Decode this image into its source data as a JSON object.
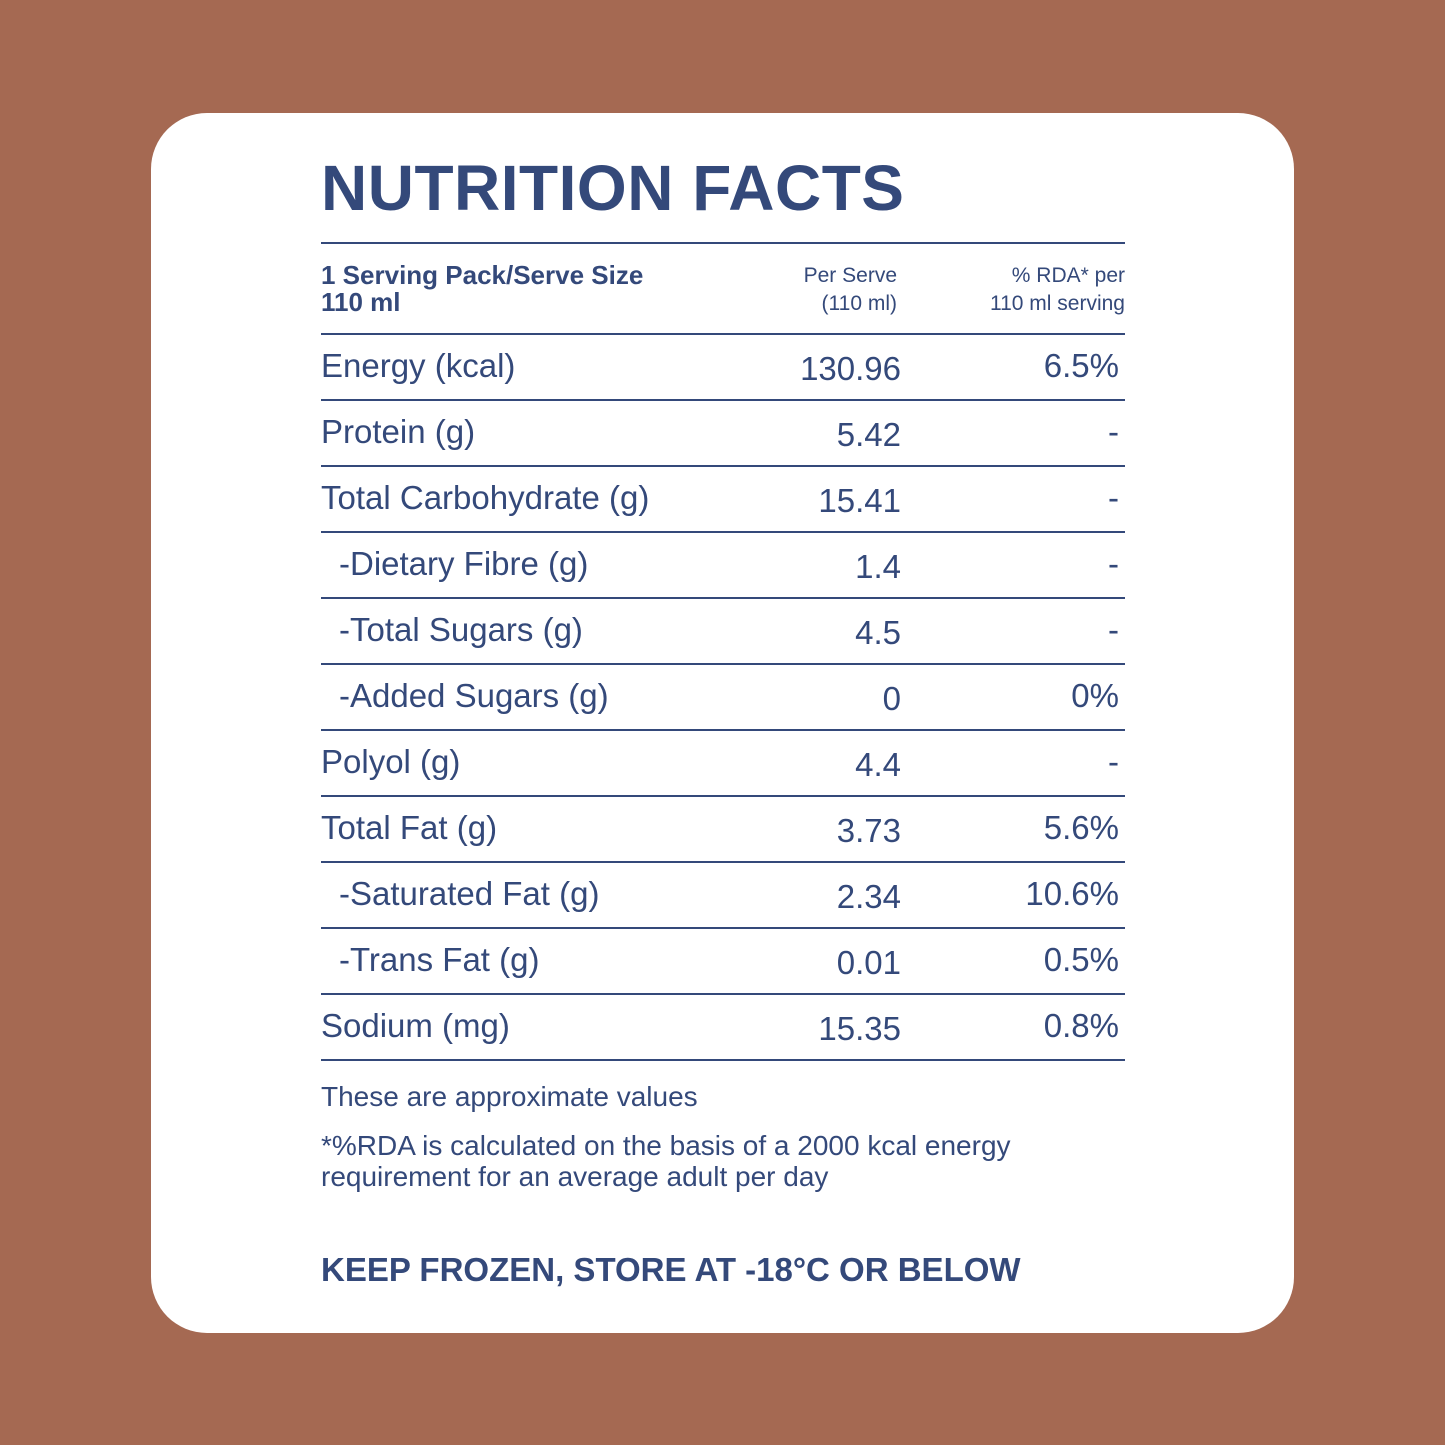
{
  "title": "NUTRITION FACTS",
  "header": {
    "serving_line1": "1 Serving Pack/Serve Size",
    "serving_line2": "110 ml",
    "per_serve_line1": "Per Serve",
    "per_serve_line2": "(110 ml)",
    "rda_line1": "% RDA* per",
    "rda_line2": "110 ml serving"
  },
  "rows": [
    {
      "name": "Energy (kcal)",
      "value": "130.96",
      "rda": "6.5%"
    },
    {
      "name": "Protein (g)",
      "value": "5.42",
      "rda": "-"
    },
    {
      "name": "Total Carbohydrate (g)",
      "value": "15.41",
      "rda": "-"
    },
    {
      "name": "-Dietary Fibre (g)",
      "value": "1.4",
      "rda": "-"
    },
    {
      "name": "-Total Sugars (g)",
      "value": "4.5",
      "rda": "-"
    },
    {
      "name": "-Added Sugars (g)",
      "value": "0",
      "rda": "0%"
    },
    {
      "name": "Polyol (g)",
      "value": "4.4",
      "rda": "-"
    },
    {
      "name": "Total Fat (g)",
      "value": "3.73",
      "rda": "5.6%"
    },
    {
      "name": "-Saturated Fat (g)",
      "value": "2.34",
      "rda": "10.6%"
    },
    {
      "name": "-Trans Fat (g)",
      "value": "0.01",
      "rda": "0.5%"
    },
    {
      "name": "Sodium (mg)",
      "value": "15.35",
      "rda": "0.8%"
    }
  ],
  "notes": {
    "approx": "These are approximate values",
    "rda_line1": "*%RDA is calculated on the basis of a 2000 kcal energy",
    "rda_line2": "requirement for an average adult per day"
  },
  "storage": "KEEP FROZEN, STORE AT -18°C OR BELOW",
  "colors": {
    "background": "#a56952",
    "card": "#ffffff",
    "text": "#34497a"
  }
}
